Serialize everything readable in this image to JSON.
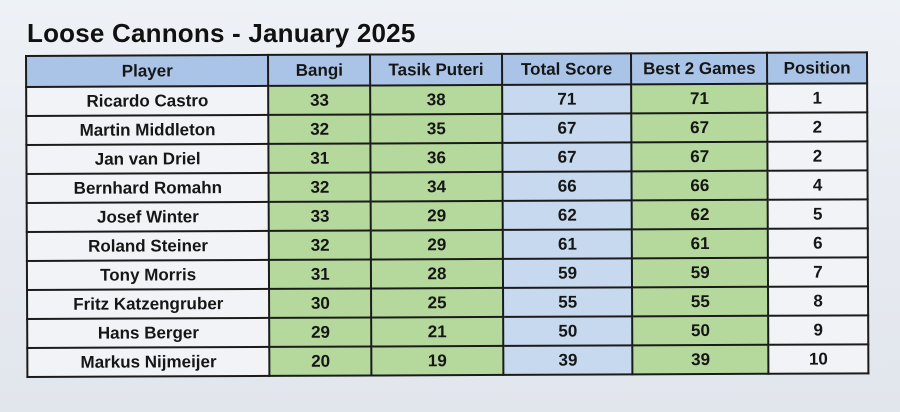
{
  "title": "Loose Cannons - January 2025",
  "columns": [
    "Player",
    "Bangi",
    "Tasik Puteri",
    "Total Score",
    "Best 2 Games",
    "Position"
  ],
  "colors": {
    "header": "#a9c4e6",
    "game_score": "#b5d99c",
    "total_score": "#c7d9ee",
    "position": "#f1f3f7"
  },
  "rows": [
    {
      "player": "Ricardo Castro",
      "bangi": "33",
      "tasik_puteri": "38",
      "total": "71",
      "best2": "71",
      "position": "1"
    },
    {
      "player": "Martin Middleton",
      "bangi": "32",
      "tasik_puteri": "35",
      "total": "67",
      "best2": "67",
      "position": "2"
    },
    {
      "player": "Jan van Driel",
      "bangi": "31",
      "tasik_puteri": "36",
      "total": "67",
      "best2": "67",
      "position": "2"
    },
    {
      "player": "Bernhard Romahn",
      "bangi": "32",
      "tasik_puteri": "34",
      "total": "66",
      "best2": "66",
      "position": "4"
    },
    {
      "player": "Josef Winter",
      "bangi": "33",
      "tasik_puteri": "29",
      "total": "62",
      "best2": "62",
      "position": "5"
    },
    {
      "player": "Roland Steiner",
      "bangi": "32",
      "tasik_puteri": "29",
      "total": "61",
      "best2": "61",
      "position": "6"
    },
    {
      "player": "Tony Morris",
      "bangi": "31",
      "tasik_puteri": "28",
      "total": "59",
      "best2": "59",
      "position": "7"
    },
    {
      "player": "Fritz Katzengruber",
      "bangi": "30",
      "tasik_puteri": "25",
      "total": "55",
      "best2": "55",
      "position": "8"
    },
    {
      "player": "Hans Berger",
      "bangi": "29",
      "tasik_puteri": "21",
      "total": "50",
      "best2": "50",
      "position": "9"
    },
    {
      "player": "Markus Nijmeijer",
      "bangi": "20",
      "tasik_puteri": "19",
      "total": "39",
      "best2": "39",
      "position": "10"
    }
  ]
}
